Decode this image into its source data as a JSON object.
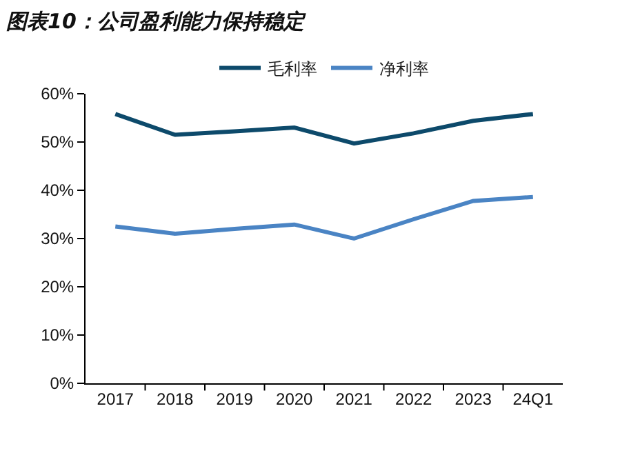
{
  "chart_data": {
    "type": "line",
    "title": "图表10：公司盈利能力保持稳定",
    "categories": [
      "2017",
      "2018",
      "2019",
      "2020",
      "2021",
      "2022",
      "2023",
      "24Q1"
    ],
    "series": [
      {
        "name": "毛利率",
        "color": "#0d4a6b",
        "values": [
          55.8,
          51.5,
          52.2,
          53.0,
          49.7,
          51.8,
          54.4,
          55.8
        ]
      },
      {
        "name": "净利率",
        "color": "#4a84c4",
        "values": [
          32.5,
          31.0,
          32.0,
          32.9,
          30.0,
          34.0,
          37.8,
          38.6
        ]
      }
    ],
    "ylim": [
      0,
      60
    ],
    "yticks": [
      {
        "value": 0,
        "label": "0%"
      },
      {
        "value": 10,
        "label": "10%"
      },
      {
        "value": 20,
        "label": "20%"
      },
      {
        "value": 30,
        "label": "30%"
      },
      {
        "value": 40,
        "label": "40%"
      },
      {
        "value": 50,
        "label": "50%"
      },
      {
        "value": 60,
        "label": "60%"
      }
    ],
    "grid": false,
    "legend": "top",
    "marker": "none",
    "line_style": "solid"
  }
}
